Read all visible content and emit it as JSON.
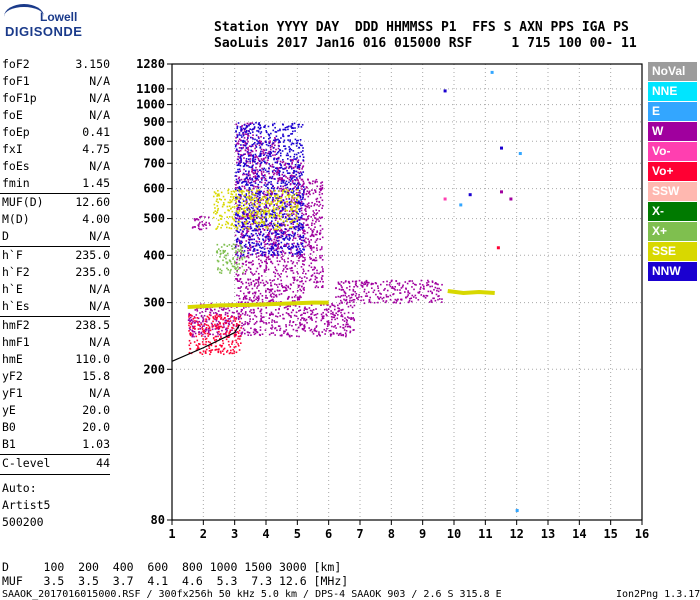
{
  "logo": {
    "brand_top": "Lowell",
    "brand_bottom": "DIGISONDE"
  },
  "header": {
    "line1": "Station YYYY DAY  DDD HHMMSS P1  FFS S AXN PPS IGA PS",
    "line2": "SaoLuis 2017 Jan16 016 015000 RSF     1 715 100 00- 11"
  },
  "params": [
    {
      "k": "foF2",
      "v": "3.150"
    },
    {
      "k": "foF1",
      "v": "N/A"
    },
    {
      "k": "foF1p",
      "v": "N/A"
    },
    {
      "k": "foE",
      "v": "N/A"
    },
    {
      "k": "foEp",
      "v": "0.41"
    },
    {
      "k": "fxI",
      "v": "4.75"
    },
    {
      "k": "foEs",
      "v": "N/A"
    },
    {
      "k": "fmin",
      "v": "1.45"
    },
    {
      "k": "MUF(D)",
      "v": "12.60"
    },
    {
      "k": "M(D)",
      "v": "4.00"
    },
    {
      "k": "D",
      "v": "N/A"
    },
    {
      "k": "h`F",
      "v": "235.0"
    },
    {
      "k": "h`F2",
      "v": "235.0"
    },
    {
      "k": "h`E",
      "v": "N/A"
    },
    {
      "k": "h`Es",
      "v": "N/A"
    },
    {
      "k": "hmF2",
      "v": "238.5"
    },
    {
      "k": "hmF1",
      "v": "N/A"
    },
    {
      "k": "hmE",
      "v": "110.0"
    },
    {
      "k": "yF2",
      "v": "15.8"
    },
    {
      "k": "yF1",
      "v": "N/A"
    },
    {
      "k": "yE",
      "v": "20.0"
    },
    {
      "k": "B0",
      "v": "20.0"
    },
    {
      "k": "B1",
      "v": "1.03"
    },
    {
      "k": "C-level",
      "v": "44"
    }
  ],
  "autoscale": {
    "line1": "Auto:",
    "line2": "Artist5",
    "line3": "500200"
  },
  "legend": [
    {
      "label": "NoVal",
      "bg": "#9c9c9c",
      "fg": "#ffffff"
    },
    {
      "label": "NNE",
      "bg": "#00e5ff",
      "fg": "#ffffff"
    },
    {
      "label": "E",
      "bg": "#33a6ff",
      "fg": "#ffffff"
    },
    {
      "label": "W",
      "bg": "#a0009e",
      "fg": "#ffffff"
    },
    {
      "label": "Vo-",
      "bg": "#ff3fb0",
      "fg": "#ffffff"
    },
    {
      "label": "Vo+",
      "bg": "#ff0033",
      "fg": "#ffffff"
    },
    {
      "label": "SSW",
      "bg": "#ffb8b0",
      "fg": "#ffffff"
    },
    {
      "label": "X-",
      "bg": "#007a00",
      "fg": "#ffffff"
    },
    {
      "label": "X+",
      "bg": "#7fbf4f",
      "fg": "#ffffff"
    },
    {
      "label": "SSE",
      "bg": "#d8d800",
      "fg": "#ffffff"
    },
    {
      "label": "NNW",
      "bg": "#1a00d0",
      "fg": "#ffffff"
    }
  ],
  "muf_table": {
    "line1": "D     100  200  400  600  800 1000 1500 3000 [km]",
    "line2": "MUF   3.5  3.5  3.7  4.1  4.6  5.3  7.3 12.6 [MHz]"
  },
  "footer": {
    "left": "SAAOK_2017016015000.RSF / 300fx256h 50 kHz 5.0 km / DPS-4 SAAOK 903 / 2.6 S 315.8 E",
    "right": "Ion2Png 1.3.17"
  },
  "chart_data": {
    "type": "scatter",
    "title": "",
    "xlabel": "",
    "ylabel": "",
    "xlim": [
      1,
      16
    ],
    "ylim": [
      80,
      1280
    ],
    "y_scale": "log",
    "x_ticks": [
      1,
      2,
      3,
      4,
      5,
      6,
      7,
      8,
      9,
      10,
      11,
      12,
      13,
      14,
      15,
      16
    ],
    "y_ticks": [
      80,
      200,
      300,
      400,
      500,
      600,
      700,
      800,
      900,
      1000,
      1100,
      1280
    ],
    "grid": true,
    "echo_regions": [
      {
        "series": "W",
        "x": [
          3.0,
          3.6
        ],
        "y": [
          300,
          900
        ]
      },
      {
        "series": "W",
        "x": [
          3.6,
          4.4
        ],
        "y": [
          300,
          830
        ]
      },
      {
        "series": "W",
        "x": [
          4.4,
          5.2
        ],
        "y": [
          300,
          720
        ]
      },
      {
        "series": "W",
        "x": [
          5.2,
          5.8
        ],
        "y": [
          330,
          640
        ]
      },
      {
        "series": "W",
        "x": [
          1.5,
          2.2
        ],
        "y": [
          470,
          510
        ]
      },
      {
        "series": "W",
        "x": [
          6.2,
          9.6
        ],
        "y": [
          300,
          345
        ]
      },
      {
        "series": "W",
        "x": [
          1.5,
          6.8
        ],
        "y": [
          245,
          300
        ]
      },
      {
        "series": "Vo+",
        "x": [
          1.5,
          3.2
        ],
        "y": [
          220,
          280
        ]
      },
      {
        "series": "NNW",
        "x": [
          3.0,
          5.2
        ],
        "y": [
          400,
          900
        ]
      },
      {
        "series": "SSE",
        "x": [
          2.3,
          5.0
        ],
        "y": [
          470,
          600
        ]
      },
      {
        "series": "X+",
        "x": [
          2.4,
          3.3
        ],
        "y": [
          360,
          430
        ]
      }
    ],
    "traces": [
      {
        "series": "SSE",
        "name": "",
        "x": [
          1.5,
          2.5,
          3.5,
          4.5,
          5.5,
          6.0
        ],
        "y": [
          292,
          295,
          296,
          298,
          300,
          300
        ]
      },
      {
        "series": "SSE",
        "name": "",
        "x": [
          9.8,
          10.3,
          10.8,
          11.3
        ],
        "y": [
          322,
          318,
          320,
          318
        ]
      },
      {
        "series": "NoVal",
        "name": "",
        "x": [
          1.0,
          2.0,
          3.0,
          3.15
        ],
        "y": [
          210,
          228,
          250,
          262
        ]
      }
    ],
    "isolated_points": [
      {
        "series": "NNW",
        "x": 9.7,
        "y": 1090
      },
      {
        "series": "Vo-",
        "x": 9.7,
        "y": 565
      },
      {
        "series": "NNW",
        "x": 10.5,
        "y": 580
      },
      {
        "series": "E",
        "x": 10.2,
        "y": 545
      },
      {
        "series": "NNW",
        "x": 11.5,
        "y": 770
      },
      {
        "series": "E",
        "x": 12.1,
        "y": 745
      },
      {
        "series": "W",
        "x": 11.5,
        "y": 590
      },
      {
        "series": "W",
        "x": 11.8,
        "y": 565
      },
      {
        "series": "Vo+",
        "x": 11.4,
        "y": 420
      },
      {
        "series": "E",
        "x": 11.2,
        "y": 1220
      },
      {
        "series": "E",
        "x": 12.0,
        "y": 85
      }
    ]
  }
}
